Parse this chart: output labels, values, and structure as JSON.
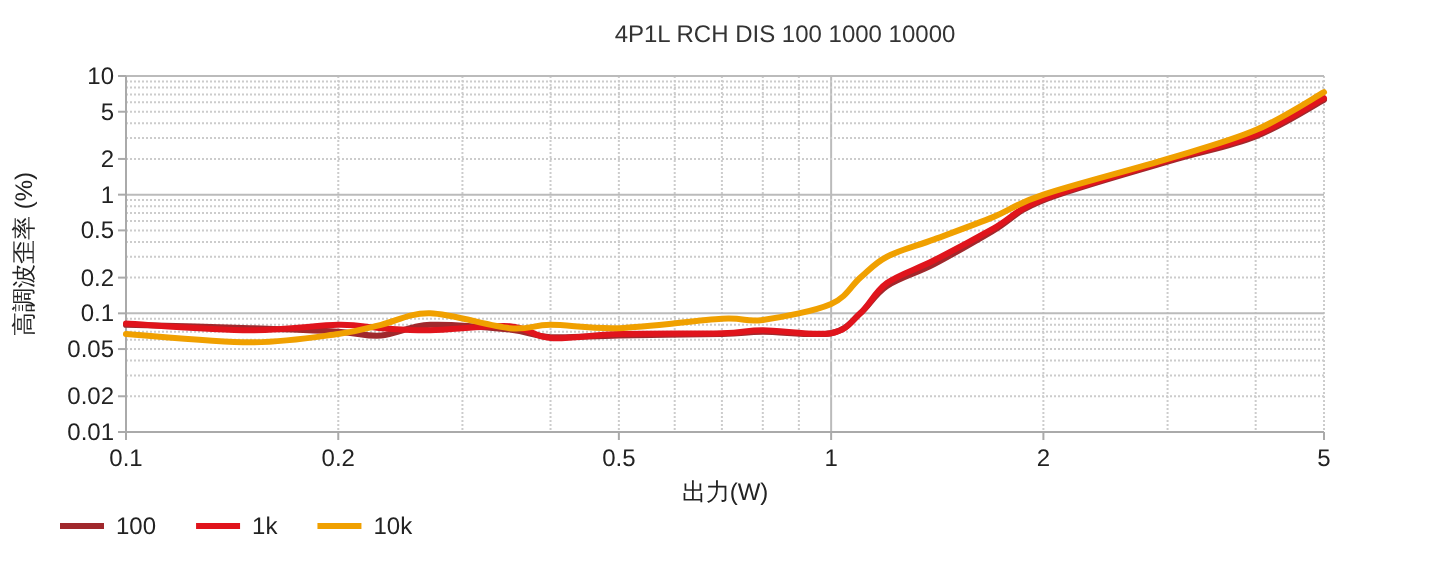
{
  "chart_data": {
    "type": "line",
    "title": "4P1L RCH DIS 100 1000 10000",
    "xlabel": "出力(W)",
    "ylabel": "高調波歪率 (%)",
    "log": "xy",
    "grid": true,
    "legend": "bottom left",
    "marker": "none",
    "line_style": "solid",
    "xlim": [
      0.1,
      5
    ],
    "xticks": [
      0.1,
      0.2,
      0.5,
      1,
      2,
      5
    ],
    "ylim": [
      0.01,
      10
    ],
    "yticks": [
      0.01,
      0.02,
      0.05,
      0.1,
      0.2,
      0.5,
      1,
      2,
      5,
      10
    ],
    "x": [
      0.1,
      0.15,
      0.2,
      0.23,
      0.27,
      0.35,
      0.4,
      0.5,
      0.7,
      0.8,
      1.0,
      1.1,
      1.2,
      1.4,
      1.7,
      2,
      3,
      4,
      5
    ],
    "series": [
      {
        "name": "100",
        "color": "#a0282c",
        "values": [
          0.08,
          0.075,
          0.07,
          0.065,
          0.08,
          0.073,
          0.063,
          0.065,
          0.067,
          0.07,
          0.068,
          0.1,
          0.17,
          0.26,
          0.5,
          0.9,
          1.9,
          3.1,
          6.3
        ]
      },
      {
        "name": "1k",
        "color": "#e0141c",
        "values": [
          0.082,
          0.072,
          0.08,
          0.075,
          0.072,
          0.078,
          0.062,
          0.067,
          0.068,
          0.072,
          0.068,
          0.1,
          0.18,
          0.28,
          0.52,
          0.92,
          1.95,
          3.2,
          6.5
        ]
      },
      {
        "name": "10k",
        "color": "#f0a000",
        "values": [
          0.067,
          0.057,
          0.067,
          0.08,
          0.1,
          0.075,
          0.08,
          0.075,
          0.09,
          0.088,
          0.12,
          0.2,
          0.3,
          0.42,
          0.65,
          1.0,
          2.0,
          3.5,
          7.3
        ]
      }
    ]
  }
}
